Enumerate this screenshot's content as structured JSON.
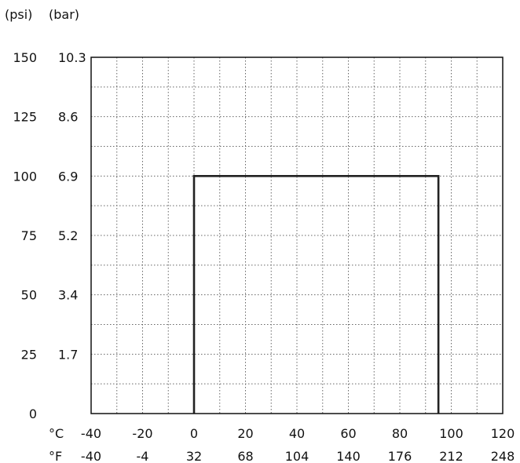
{
  "chart_data": {
    "type": "line",
    "title": "",
    "unit_labels": {
      "psi": "(psi)",
      "bar": "(bar)",
      "celsius": "°C",
      "fahrenheit": "°F"
    },
    "xlim": [
      -40,
      120
    ],
    "ylim": [
      0,
      150
    ],
    "x_ticks_celsius": [
      "-40",
      "-20",
      "0",
      "20",
      "40",
      "60",
      "80",
      "100",
      "120"
    ],
    "x_ticks_fahrenheit": [
      "-40",
      "-4",
      "32",
      "68",
      "104",
      "140",
      "176",
      "212",
      "248"
    ],
    "x_tick_values": [
      -40,
      -20,
      0,
      20,
      40,
      60,
      80,
      100,
      120
    ],
    "y_ticks_psi": [
      "0",
      "25",
      "50",
      "75",
      "100",
      "125",
      "150"
    ],
    "y_ticks_bar": [
      "1.7",
      "3.4",
      "5.2",
      "6.9",
      "8.6",
      "10.3"
    ],
    "y_tick_values_psi": [
      0,
      25,
      50,
      75,
      100,
      125,
      150
    ],
    "y_tick_values_bar": [
      25,
      50,
      75,
      100,
      125,
      150
    ],
    "grid": {
      "x_step": 10,
      "y_step": 12.5,
      "style": "dotted"
    },
    "series": [
      {
        "x": [
          0,
          0,
          95,
          95
        ],
        "y": [
          0,
          100,
          100,
          0
        ]
      }
    ]
  }
}
